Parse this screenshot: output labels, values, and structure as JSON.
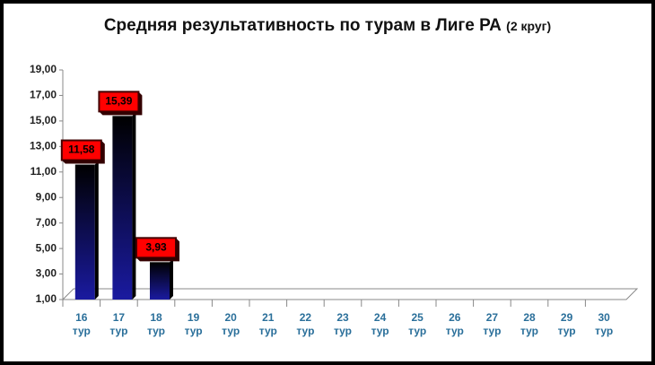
{
  "chart_data": {
    "type": "bar",
    "title": "Средняя результативность по турам в Лиге РА",
    "subtitle": "(2 круг)",
    "categories": [
      "16 тур",
      "17 тур",
      "18 тур",
      "19 тур",
      "20 тур",
      "21 тур",
      "22 тур",
      "23 тур",
      "24 тур",
      "25 тур",
      "26 тур",
      "27 тур",
      "28 тур",
      "29 тур",
      "30 тур"
    ],
    "values": [
      11.58,
      15.39,
      3.93,
      null,
      null,
      null,
      null,
      null,
      null,
      null,
      null,
      null,
      null,
      null,
      null
    ],
    "value_labels": [
      "11,58",
      "15,39",
      "3,93",
      null,
      null,
      null,
      null,
      null,
      null,
      null,
      null,
      null,
      null,
      null,
      null
    ],
    "color": "#0a0a5a",
    "ylim": [
      1,
      19
    ],
    "yticks": [
      {
        "value": 1,
        "label": "1,00"
      },
      {
        "value": 3,
        "label": "3,00"
      },
      {
        "value": 5,
        "label": "5,00"
      },
      {
        "value": 7,
        "label": "7,00"
      },
      {
        "value": 9,
        "label": "9,00"
      },
      {
        "value": 11,
        "label": "11,00"
      },
      {
        "value": 13,
        "label": "13,00"
      },
      {
        "value": 15,
        "label": "15,00"
      },
      {
        "value": 17,
        "label": "17,00"
      },
      {
        "value": 19,
        "label": "19,00"
      }
    ]
  }
}
